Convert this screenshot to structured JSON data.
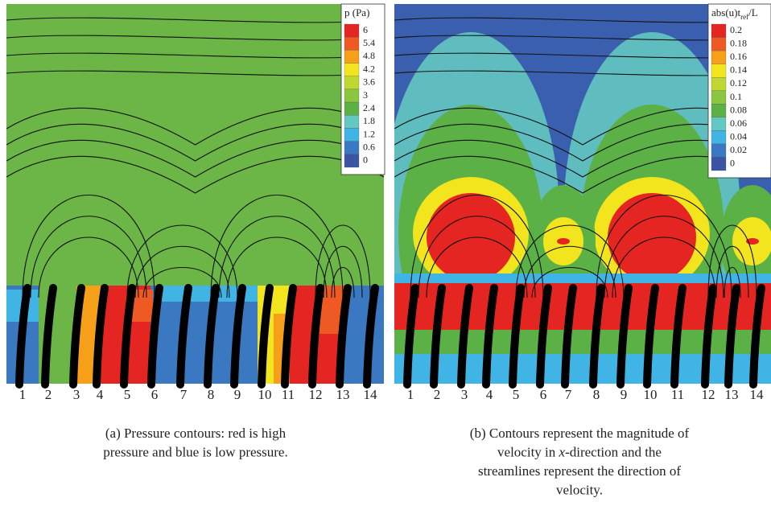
{
  "panels": [
    {
      "legend": {
        "title": [
          "p (Pa)"
        ],
        "levels": [
          "6",
          "5.4",
          "4.8",
          "4.2",
          "3.6",
          "3",
          "2.4",
          "1.8",
          "1.2",
          "0.6",
          "0"
        ],
        "colors": [
          "#e52521",
          "#ef5a24",
          "#f6a01a",
          "#f2e51e",
          "#c0d731",
          "#8cc63f",
          "#5bb146",
          "#64c8c2",
          "#3fb4e5",
          "#3a78c2",
          "#3a55a4"
        ]
      },
      "cilia_labels": [
        "1",
        "2",
        "3",
        "4",
        "5",
        "6",
        "7",
        "8",
        "9",
        "10",
        "11",
        "12",
        "13",
        "14"
      ],
      "caption": [
        [
          "(a) Pressure contours: red is high"
        ],
        [
          "pressure and blue is low pressure."
        ]
      ]
    },
    {
      "legend": {
        "title": [
          "abs(u)t",
          "ref",
          "/L"
        ],
        "levels": [
          "0.2",
          "0.18",
          "0.16",
          "0.14",
          "0.12",
          "0.1",
          "0.08",
          "0.06",
          "0.04",
          "0.02",
          "0"
        ],
        "colors": [
          "#e52521",
          "#ef5a24",
          "#f6a01a",
          "#f2e51e",
          "#c0d731",
          "#8cc63f",
          "#5bb146",
          "#64c8c2",
          "#3fb4e5",
          "#3a78c2",
          "#3a55a4"
        ]
      },
      "cilia_labels": [
        "1",
        "2",
        "3",
        "4",
        "5",
        "6",
        "7",
        "8",
        "9",
        "10",
        "11",
        "12",
        "13",
        "14"
      ],
      "caption": [
        [
          "(b) Contours represent the magnitude of"
        ],
        [
          "velocity in ",
          "x",
          "-direction and the"
        ],
        [
          "streamlines represent the direction of"
        ],
        [
          "velocity."
        ]
      ]
    }
  ]
}
